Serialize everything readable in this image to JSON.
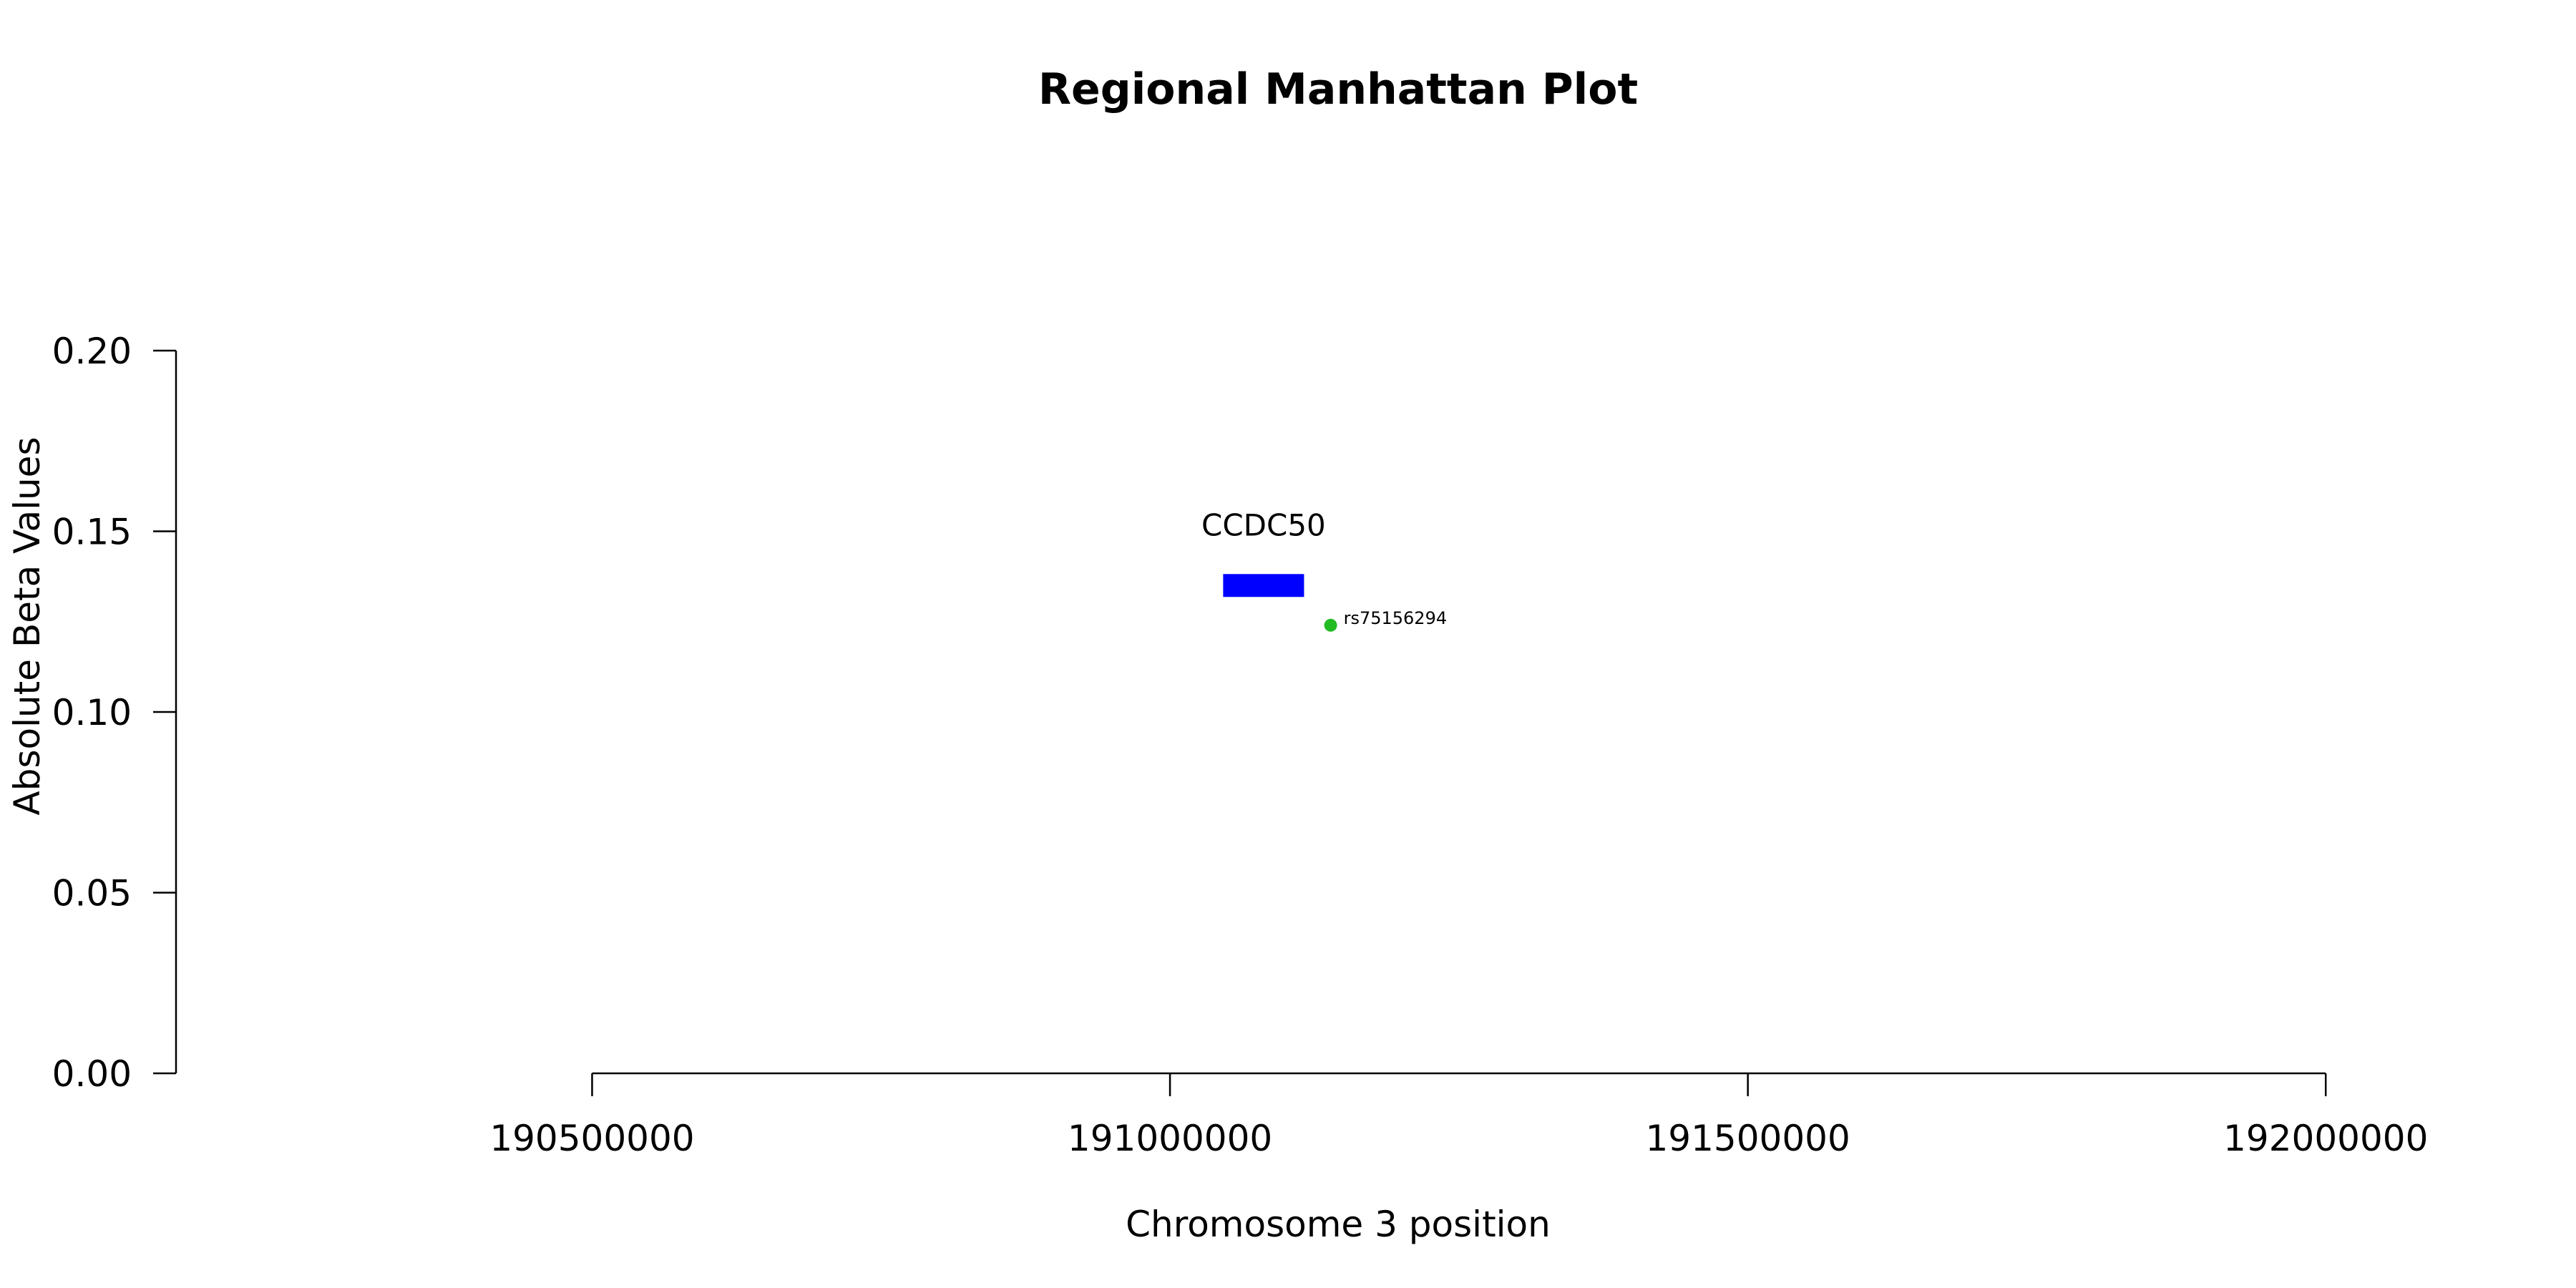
{
  "chart_data": {
    "type": "scatter",
    "title": "Regional Manhattan Plot",
    "xlabel": "Chromosome 3 position",
    "ylabel": "Absolute Beta Values",
    "xlim": [
      190140000,
      192180000
    ],
    "ylim": [
      0,
      0.2
    ],
    "x_ticks": [
      190500000,
      191000000,
      191500000,
      192000000
    ],
    "x_tick_labels": [
      "190500000",
      "191000000",
      "191500000",
      "192000000"
    ],
    "y_ticks": [
      0,
      0.05,
      0.1,
      0.15,
      0.2
    ],
    "y_tick_labels": [
      "0.00",
      "0.05",
      "0.10",
      "0.15",
      "0.20"
    ],
    "grid": false,
    "genes": [
      {
        "name": "CCDC50",
        "start": 191046000,
        "end": 191116000,
        "y": 0.135,
        "color": "#0000ff"
      }
    ],
    "points": [
      {
        "label": "rs75156294",
        "x": 191139000,
        "y": 0.124,
        "color": "#22bb22"
      }
    ]
  }
}
